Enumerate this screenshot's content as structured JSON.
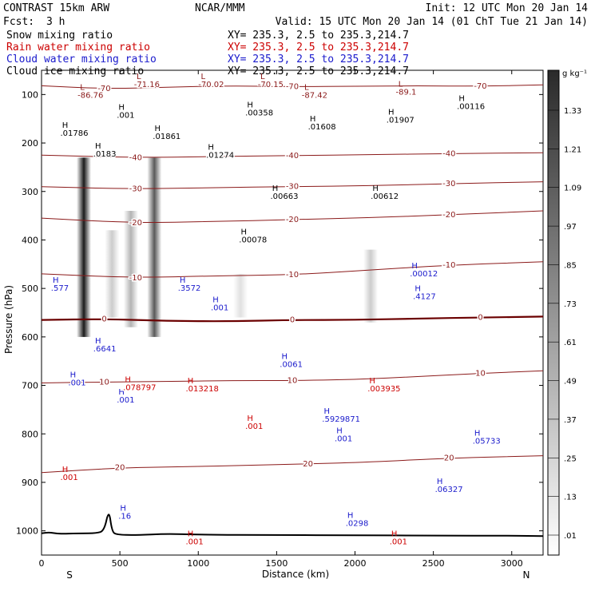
{
  "header": {
    "model": "CONTRAST 15km ARW",
    "center": "NCAR/MMM",
    "init": "Init: 12 UTC Mon 20 Jan 14",
    "fcst_label": "Fcst:",
    "fcst_value": "3 h",
    "valid": "Valid: 15 UTC Mon 20 Jan 14 (01 ChT Tue 21 Jan 14)"
  },
  "legend": [
    {
      "name": "Snow mixing ratio",
      "xy": "XY= 235.3,  2.5 to 235.3,214.7",
      "color": "#000000"
    },
    {
      "name": "Rain water mixing ratio",
      "xy": "XY= 235.3,  2.5 to 235.3,214.7",
      "color": "#cc0000"
    },
    {
      "name": "Cloud water mixing ratio",
      "xy": "XY= 235.3,  2.5 to 235.3,214.7",
      "color": "#1a1acc"
    },
    {
      "name": "Cloud ice mixing ratio",
      "xy": "XY= 235.3,  2.5 to 235.3,214.7",
      "color": "#000000"
    }
  ],
  "chart_data": {
    "type": "contour-cross-section",
    "xlabel": "Distance (km)",
    "ylabel": "Pressure (hPa)",
    "xlim": [
      0,
      3200
    ],
    "ylim": [
      1050,
      50
    ],
    "x_ticks": [
      0,
      500,
      1000,
      1500,
      2000,
      2500,
      3000
    ],
    "x_tick_labels": [
      "0",
      "500",
      "1000",
      "1500",
      "2000",
      "2500",
      "3000"
    ],
    "y_ticks": [
      100,
      200,
      300,
      400,
      500,
      600,
      700,
      800,
      900,
      1000
    ],
    "y_tick_labels": [
      "100",
      "200",
      "300",
      "400",
      "500",
      "600",
      "700",
      "800",
      "900",
      "1000"
    ],
    "endpoints": {
      "left": "S",
      "right": "N"
    },
    "colorbar": {
      "unit": "g kg⁻¹",
      "labels": [
        "1.33",
        "1.21",
        "1.09",
        ".97",
        ".85",
        ".73",
        ".61",
        ".49",
        ".37",
        ".25",
        ".13",
        ".01"
      ]
    },
    "snow_shading": [
      {
        "x": 270,
        "p_top": 230,
        "p_bot": 600,
        "intensity": 0.9
      },
      {
        "x": 450,
        "p_top": 380,
        "p_bot": 560,
        "intensity": 0.2
      },
      {
        "x": 570,
        "p_top": 340,
        "p_bot": 580,
        "intensity": 0.3
      },
      {
        "x": 720,
        "p_top": 230,
        "p_bot": 600,
        "intensity": 0.65
      },
      {
        "x": 1270,
        "p_top": 470,
        "p_bot": 560,
        "intensity": 0.12
      },
      {
        "x": 2100,
        "p_top": 420,
        "p_bot": 570,
        "intensity": 0.2
      }
    ],
    "temperature_contours": [
      {
        "label": "-70",
        "points": [
          [
            0,
            82
          ],
          [
            400,
            88
          ],
          [
            800,
            85
          ],
          [
            1200,
            82
          ],
          [
            1600,
            84
          ],
          [
            2000,
            83
          ],
          [
            2400,
            82
          ],
          [
            2800,
            83
          ],
          [
            3200,
            80
          ]
        ]
      },
      {
        "label": "-40",
        "points": [
          [
            0,
            225
          ],
          [
            600,
            230
          ],
          [
            1100,
            228
          ],
          [
            1600,
            226
          ],
          [
            2100,
            224
          ],
          [
            2600,
            222
          ],
          [
            3200,
            220
          ]
        ]
      },
      {
        "label": "-30",
        "points": [
          [
            0,
            290
          ],
          [
            600,
            295
          ],
          [
            1100,
            292
          ],
          [
            1600,
            290
          ],
          [
            2100,
            288
          ],
          [
            2600,
            284
          ],
          [
            3200,
            280
          ]
        ]
      },
      {
        "label": "-20",
        "points": [
          [
            0,
            355
          ],
          [
            600,
            365
          ],
          [
            1100,
            362
          ],
          [
            1600,
            358
          ],
          [
            2100,
            354
          ],
          [
            2600,
            348
          ],
          [
            3200,
            340
          ]
        ]
      },
      {
        "label": "-10",
        "points": [
          [
            0,
            470
          ],
          [
            600,
            478
          ],
          [
            1100,
            474
          ],
          [
            1600,
            472
          ],
          [
            2100,
            462
          ],
          [
            2600,
            452
          ],
          [
            3200,
            445
          ]
        ]
      },
      {
        "label": "0",
        "points": [
          [
            0,
            565
          ],
          [
            400,
            563
          ],
          [
            800,
            567
          ],
          [
            1200,
            568
          ],
          [
            1600,
            565
          ],
          [
            2000,
            565
          ],
          [
            2400,
            562
          ],
          [
            2800,
            560
          ],
          [
            3200,
            558
          ]
        ]
      },
      {
        "label": "10",
        "points": [
          [
            0,
            695
          ],
          [
            400,
            693
          ],
          [
            800,
            692
          ],
          [
            1200,
            690
          ],
          [
            1600,
            690
          ],
          [
            2000,
            688
          ],
          [
            2400,
            682
          ],
          [
            2800,
            675
          ],
          [
            3200,
            670
          ]
        ]
      },
      {
        "label": "20",
        "points": [
          [
            0,
            880
          ],
          [
            500,
            870
          ],
          [
            900,
            868
          ],
          [
            1300,
            865
          ],
          [
            1700,
            862
          ],
          [
            2100,
            858
          ],
          [
            2600,
            850
          ],
          [
            3200,
            845
          ]
        ]
      }
    ],
    "snow_labels": [
      {
        "x": 120,
        "p": 185,
        "text": ".01786"
      },
      {
        "x": 330,
        "p": 228,
        "text": ".0183"
      },
      {
        "x": 710,
        "p": 192,
        "text": ".01861"
      },
      {
        "x": 1050,
        "p": 230,
        "text": ".01274"
      },
      {
        "x": 1300,
        "p": 143,
        "text": ".00358"
      },
      {
        "x": 1700,
        "p": 172,
        "text": ".01608"
      },
      {
        "x": 2200,
        "p": 158,
        "text": ".01907"
      },
      {
        "x": 2650,
        "p": 130,
        "text": ".00116"
      },
      {
        "x": 1460,
        "p": 315,
        "text": ".00663"
      },
      {
        "x": 2100,
        "p": 315,
        "text": ".00612"
      },
      {
        "x": 1260,
        "p": 405,
        "text": ".00078"
      },
      {
        "x": 480,
        "p": 148,
        "text": ".001"
      }
    ],
    "temp_minima_labels": [
      {
        "x": 230,
        "p": 107,
        "text": "-86.76"
      },
      {
        "x": 590,
        "p": 85,
        "text": "-71.16"
      },
      {
        "x": 1000,
        "p": 85,
        "text": "-70.02"
      },
      {
        "x": 1380,
        "p": 85,
        "text": "-70.15"
      },
      {
        "x": 1660,
        "p": 107,
        "text": "-87.42"
      },
      {
        "x": 2260,
        "p": 100,
        "text": "-89.1"
      }
    ],
    "cloud_water_labels": [
      {
        "x": 60,
        "p": 505,
        "text": ".577"
      },
      {
        "x": 870,
        "p": 505,
        "text": ".3572"
      },
      {
        "x": 2350,
        "p": 475,
        "text": ".00012"
      },
      {
        "x": 2370,
        "p": 522,
        "text": ".4127"
      },
      {
        "x": 330,
        "p": 630,
        "text": ".6641"
      },
      {
        "x": 1520,
        "p": 662,
        "text": ".0061"
      },
      {
        "x": 1790,
        "p": 775,
        "text": ".5929871"
      },
      {
        "x": 1870,
        "p": 815,
        "text": ".001"
      },
      {
        "x": 2750,
        "p": 820,
        "text": ".05733"
      },
      {
        "x": 2510,
        "p": 920,
        "text": ".06327"
      },
      {
        "x": 490,
        "p": 975,
        "text": ".16"
      },
      {
        "x": 1940,
        "p": 990,
        "text": ".0298"
      },
      {
        "x": 170,
        "p": 700,
        "text": ".001"
      },
      {
        "x": 480,
        "p": 735,
        "text": ".001"
      },
      {
        "x": 1080,
        "p": 545,
        "text": ".001"
      }
    ],
    "rain_labels": [
      {
        "x": 520,
        "p": 710,
        "text": ".078797"
      },
      {
        "x": 920,
        "p": 712,
        "text": ".013218"
      },
      {
        "x": 2080,
        "p": 712,
        "text": ".003935"
      },
      {
        "x": 1300,
        "p": 790,
        "text": ".001"
      },
      {
        "x": 120,
        "p": 895,
        "text": ".001"
      },
      {
        "x": 920,
        "p": 1028,
        "text": ".001"
      },
      {
        "x": 2220,
        "p": 1028,
        "text": ".001"
      }
    ],
    "terrain": [
      [
        0,
        1005
      ],
      [
        50,
        1003
      ],
      [
        100,
        1006
      ],
      [
        150,
        1006
      ],
      [
        250,
        1005
      ],
      [
        350,
        1005
      ],
      [
        400,
        1000
      ],
      [
        430,
        955
      ],
      [
        450,
        1002
      ],
      [
        480,
        1008
      ],
      [
        600,
        1009
      ],
      [
        800,
        1006
      ],
      [
        1000,
        1008
      ],
      [
        1500,
        1009
      ],
      [
        2000,
        1009
      ],
      [
        2500,
        1010
      ],
      [
        3000,
        1010
      ],
      [
        3200,
        1011
      ]
    ]
  }
}
